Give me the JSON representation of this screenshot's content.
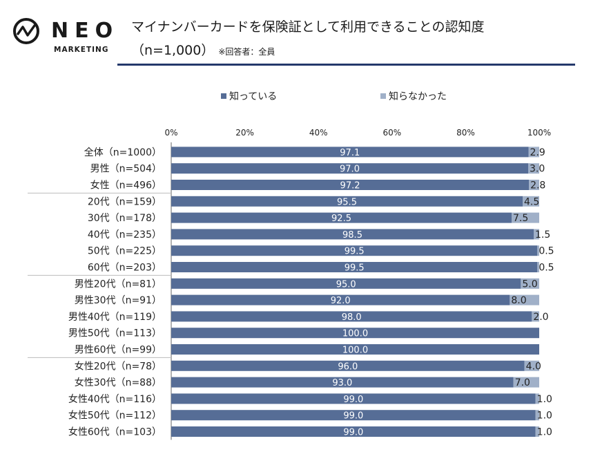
{
  "header": {
    "logo_text": "NEO",
    "logo_sub": "MARKETING",
    "title": "マイナンバーカードを保険証として利用できることの認知度",
    "subtitle": "（n=1,000）",
    "note": "※回答者：全員"
  },
  "colors": {
    "known": "#566d96",
    "unknown": "#a0b0c8",
    "rule": "#24386b"
  },
  "chart_data": {
    "type": "bar",
    "orientation": "horizontal",
    "stacked": true,
    "legend": "top-center",
    "xlim": [
      0,
      100
    ],
    "xticks": [
      "0%",
      "20%",
      "40%",
      "60%",
      "80%",
      "100%"
    ],
    "categories": [
      "全体（n=1000）",
      "男性（n=504）",
      "女性（n=496）",
      "20代（n=159）",
      "30代（n=178）",
      "40代（n=235）",
      "50代（n=225）",
      "60代（n=203）",
      "男性20代（n=81）",
      "男性30代（n=91）",
      "男性40代（n=119）",
      "男性50代（n=113）",
      "男性60代（n=99）",
      "女性20代（n=78）",
      "女性30代（n=88）",
      "女性40代（n=116）",
      "女性50代（n=112）",
      "女性60代（n=103）"
    ],
    "series": [
      {
        "name": "知っている",
        "values": [
          97.1,
          97.0,
          97.2,
          95.5,
          92.5,
          98.5,
          99.5,
          99.5,
          95.0,
          92.0,
          98.0,
          100.0,
          100.0,
          96.0,
          93.0,
          99.0,
          99.0,
          99.0
        ]
      },
      {
        "name": "知らなかった",
        "values": [
          2.9,
          3.0,
          2.8,
          4.5,
          7.5,
          1.5,
          0.5,
          0.5,
          5.0,
          8.0,
          2.0,
          null,
          null,
          4.0,
          7.0,
          1.0,
          1.0,
          1.0
        ]
      }
    ],
    "group_separators_after": [
      2,
      7,
      12
    ]
  }
}
